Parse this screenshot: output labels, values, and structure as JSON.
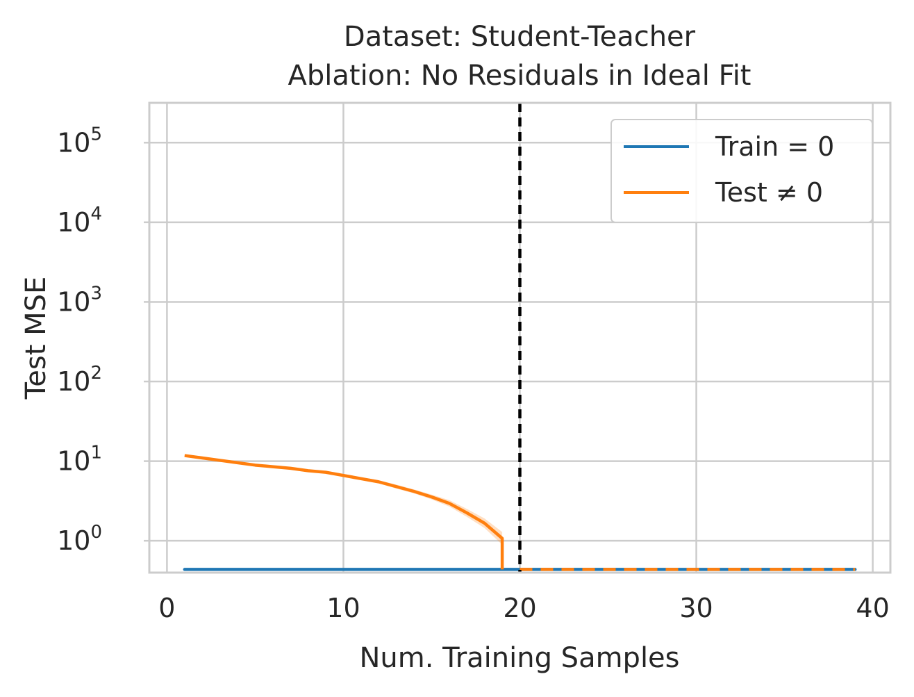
{
  "chart_data": {
    "type": "line",
    "title": [
      "Dataset: Student-Teacher",
      "Ablation: No Residuals in Ideal Fit"
    ],
    "xlabel": "Num. Training Samples",
    "ylabel": "Test MSE",
    "xlim": [
      -1,
      41
    ],
    "ylim_log10": [
      -0.4,
      5.5
    ],
    "yscale": "log",
    "grid": true,
    "legend_position": "top-right",
    "x_ticks": [
      "0",
      "10",
      "20",
      "30",
      "40"
    ],
    "y_ticks": [
      {
        "base": "10",
        "exp": "0"
      },
      {
        "base": "10",
        "exp": "1"
      },
      {
        "base": "10",
        "exp": "2"
      },
      {
        "base": "10",
        "exp": "3"
      },
      {
        "base": "10",
        "exp": "4"
      },
      {
        "base": "10",
        "exp": "5"
      }
    ],
    "vline": {
      "x": 20,
      "style": "dashed",
      "color": "#000000"
    },
    "series": [
      {
        "name": "Train = 0",
        "color": "#1f77b4",
        "x": [
          1,
          39
        ],
        "y_log10": [
          -0.36,
          -0.36
        ]
      },
      {
        "name": "Test ≠ 0",
        "color": "#ff7f0e",
        "x": [
          1,
          2,
          3,
          4,
          5,
          6,
          7,
          8,
          9,
          10,
          11,
          12,
          13,
          14,
          15,
          16,
          17,
          18,
          19,
          19
        ],
        "y_log10": [
          1.07,
          1.04,
          1.01,
          0.98,
          0.95,
          0.93,
          0.91,
          0.88,
          0.86,
          0.82,
          0.78,
          0.74,
          0.68,
          0.62,
          0.55,
          0.47,
          0.35,
          0.22,
          0.03,
          -0.36
        ],
        "band_half_width_log10": [
          0.01,
          0.01,
          0.01,
          0.01,
          0.01,
          0.01,
          0.01,
          0.015,
          0.015,
          0.02,
          0.02,
          0.02,
          0.025,
          0.025,
          0.03,
          0.04,
          0.05,
          0.06,
          0.08,
          0.0
        ],
        "dashed_continuation": {
          "x": [
            20,
            39
          ],
          "y_log10": [
            -0.36,
            -0.36
          ]
        }
      }
    ]
  }
}
